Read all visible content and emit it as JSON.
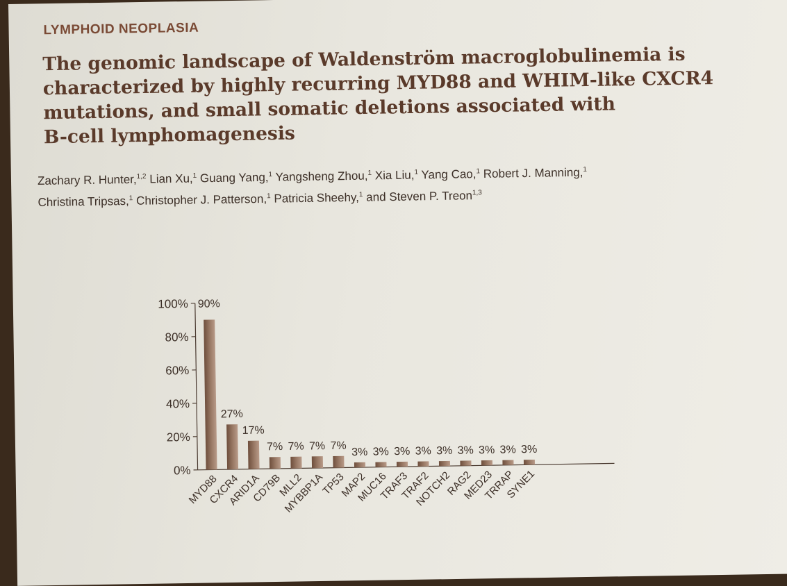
{
  "header": {
    "section": "LYMPHOID NEOPLASIA",
    "title_lines": [
      "The genomic landscape of Waldenström macroglobulinemia is",
      "characterized by highly recurring MYD88 and WHIM-like CXCR4",
      "mutations, and small somatic deletions associated with",
      "B-cell lymphomagenesis"
    ],
    "author_lines": [
      "Zachary R. Hunter,1,2 Lian Xu,1 Guang Yang,1 Yangsheng Zhou,1 Xia Liu,1 Yang Cao,1 Robert J. Manning,1",
      "Christina Tripsas,1 Christopher J. Patterson,1 Patricia Sheehy,1 and Steven P. Treon1,3"
    ]
  },
  "colors": {
    "bar": "#8a6a55",
    "text": "#3d3028",
    "title": "#5a3a2a",
    "section": "#7a4a35"
  },
  "chart_data": {
    "type": "bar",
    "categories": [
      "MYD88",
      "CXCR4",
      "ARID1A",
      "CD79B",
      "MLL2",
      "MYBBP1A",
      "TP53",
      "MAP2",
      "MUC16",
      "TRAF3",
      "TRAF2",
      "NOTCH2",
      "RAG2",
      "MED23",
      "TRRAP",
      "SYNE1"
    ],
    "values": [
      90,
      27,
      17,
      7,
      7,
      7,
      7,
      3,
      3,
      3,
      3,
      3,
      3,
      3,
      3,
      3
    ],
    "data_labels": [
      "90%",
      "27%",
      "17%",
      "7%",
      "7%",
      "7%",
      "7%",
      "3%",
      "3%",
      "3%",
      "3%",
      "3%",
      "3%",
      "3%",
      "3%",
      "3%"
    ],
    "yticks": [
      0,
      20,
      40,
      60,
      80,
      100
    ],
    "ytick_labels": [
      "0%",
      "20%",
      "40%",
      "60%",
      "80%",
      "100%"
    ],
    "ylim": [
      0,
      100
    ],
    "title": "",
    "xlabel": "",
    "ylabel": "",
    "grid": false,
    "legend": "none"
  }
}
